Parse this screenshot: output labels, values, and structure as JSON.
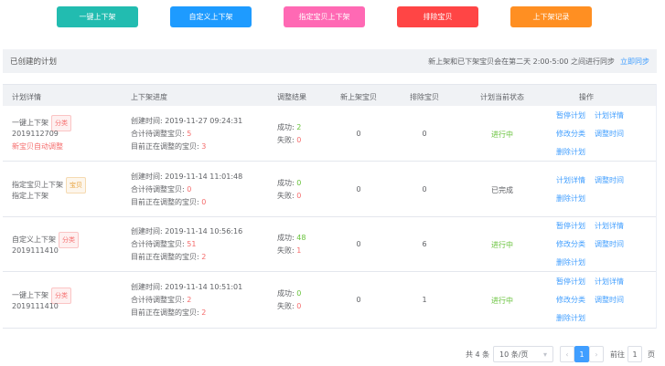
{
  "toolbar": [
    {
      "label": "一键上下架",
      "color": "#22bcb0"
    },
    {
      "label": "自定义上下架",
      "color": "#1e9bff"
    },
    {
      "label": "指定宝贝上下架",
      "color": "#ff69b4"
    },
    {
      "label": "排除宝贝",
      "color": "#ff4545"
    },
    {
      "label": "上下架记录",
      "color": "#ff8f22"
    }
  ],
  "section": {
    "title": "已创建的计划",
    "notice": "新上架和已下架宝贝会在第二天 2:00-5:00 之间进行同步",
    "sync_link": "立即同步"
  },
  "columns": [
    "计划详情",
    "上下架进度",
    "调整结果",
    "新上架宝贝",
    "排除宝贝",
    "计划当前状态",
    "操作"
  ],
  "labels": {
    "created": "创建时间: ",
    "total": "合计待调整宝贝: ",
    "current": "目前正在调整的宝贝: ",
    "success": "成功: ",
    "fail": "失败: "
  },
  "rows": [
    {
      "name": "一键上下架",
      "tag": "分类",
      "sub": "2019112709",
      "note": "新宝贝自动调整",
      "created": "2019-11-27 09:24:31",
      "total": "5",
      "current": "3",
      "success": "2",
      "fail": "0",
      "new": "0",
      "excluded": "0",
      "status": "进行中",
      "ops": [
        "暂停计划",
        "计划详情",
        "修改分类",
        "调整时间",
        "删除计划"
      ]
    },
    {
      "name": "指定宝贝上下架",
      "tag": "宝贝",
      "sub": "指定上下架",
      "created": "2019-11-14 11:01:48",
      "total": "0",
      "current": "0",
      "success": "0",
      "fail": "0",
      "new": "0",
      "excluded": "0",
      "status": "已完成",
      "ops": [
        "计划详情",
        "调整时间",
        "删除计划"
      ]
    },
    {
      "name": "自定义上下架",
      "tag": "分类",
      "sub": "2019111410",
      "created": "2019-11-14 10:56:16",
      "total": "51",
      "current": "2",
      "success": "48",
      "fail": "1",
      "new": "0",
      "excluded": "6",
      "status": "进行中",
      "ops": [
        "暂停计划",
        "计划详情",
        "修改分类",
        "调整时间",
        "删除计划"
      ]
    },
    {
      "name": "一键上下架",
      "tag": "分类",
      "sub": "2019111410",
      "created": "2019-11-14 10:51:01",
      "total": "2",
      "current": "2",
      "success": "0",
      "fail": "0",
      "new": "0",
      "excluded": "1",
      "status": "进行中",
      "ops": [
        "暂停计划",
        "计划详情",
        "修改分类",
        "调整时间",
        "删除计划"
      ]
    }
  ],
  "pagination": {
    "total": "共 4 条",
    "page_size": "10 条/页",
    "current_page": "1",
    "goto_label": "前往",
    "goto_value": "1",
    "page_unit": "页"
  }
}
